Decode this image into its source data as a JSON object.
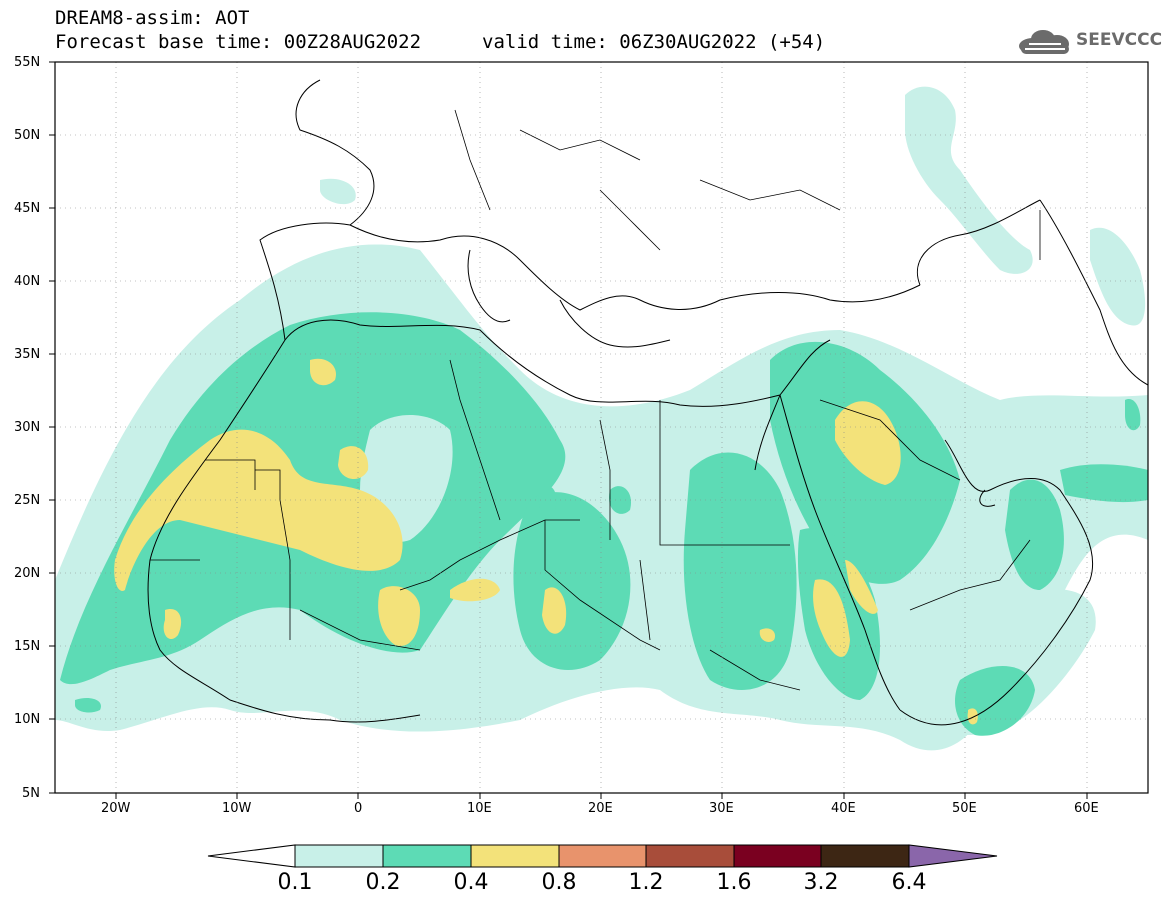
{
  "header": {
    "line1": "DREAM8-assim: AOT",
    "line2": "Forecast base time: 00Z28AUG2022",
    "valid": "valid time: 06Z30AUG2022 (+54)",
    "logo_text": "SEEVCCC"
  },
  "axes": {
    "lat_labels": [
      "55N",
      "50N",
      "45N",
      "40N",
      "35N",
      "30N",
      "25N",
      "20N",
      "15N",
      "10N",
      "5N"
    ],
    "lon_labels": [
      "20W",
      "10W",
      "0",
      "10E",
      "20E",
      "30E",
      "40E",
      "50E",
      "60E"
    ]
  },
  "colorbar": {
    "labels": [
      "0.1",
      "0.2",
      "0.4",
      "0.8",
      "1.2",
      "1.6",
      "3.2",
      "6.4"
    ],
    "colors": [
      "#ffffff",
      "#c8f0e8",
      "#5ddbb5",
      "#f3e27a",
      "#e8936c",
      "#a84d3a",
      "#7a0020",
      "#3d2614",
      "#8a66aa"
    ]
  },
  "colors": {
    "lvl1": "#c8f0e8",
    "lvl2": "#5ddbb5",
    "lvl3": "#f3e27a"
  }
}
